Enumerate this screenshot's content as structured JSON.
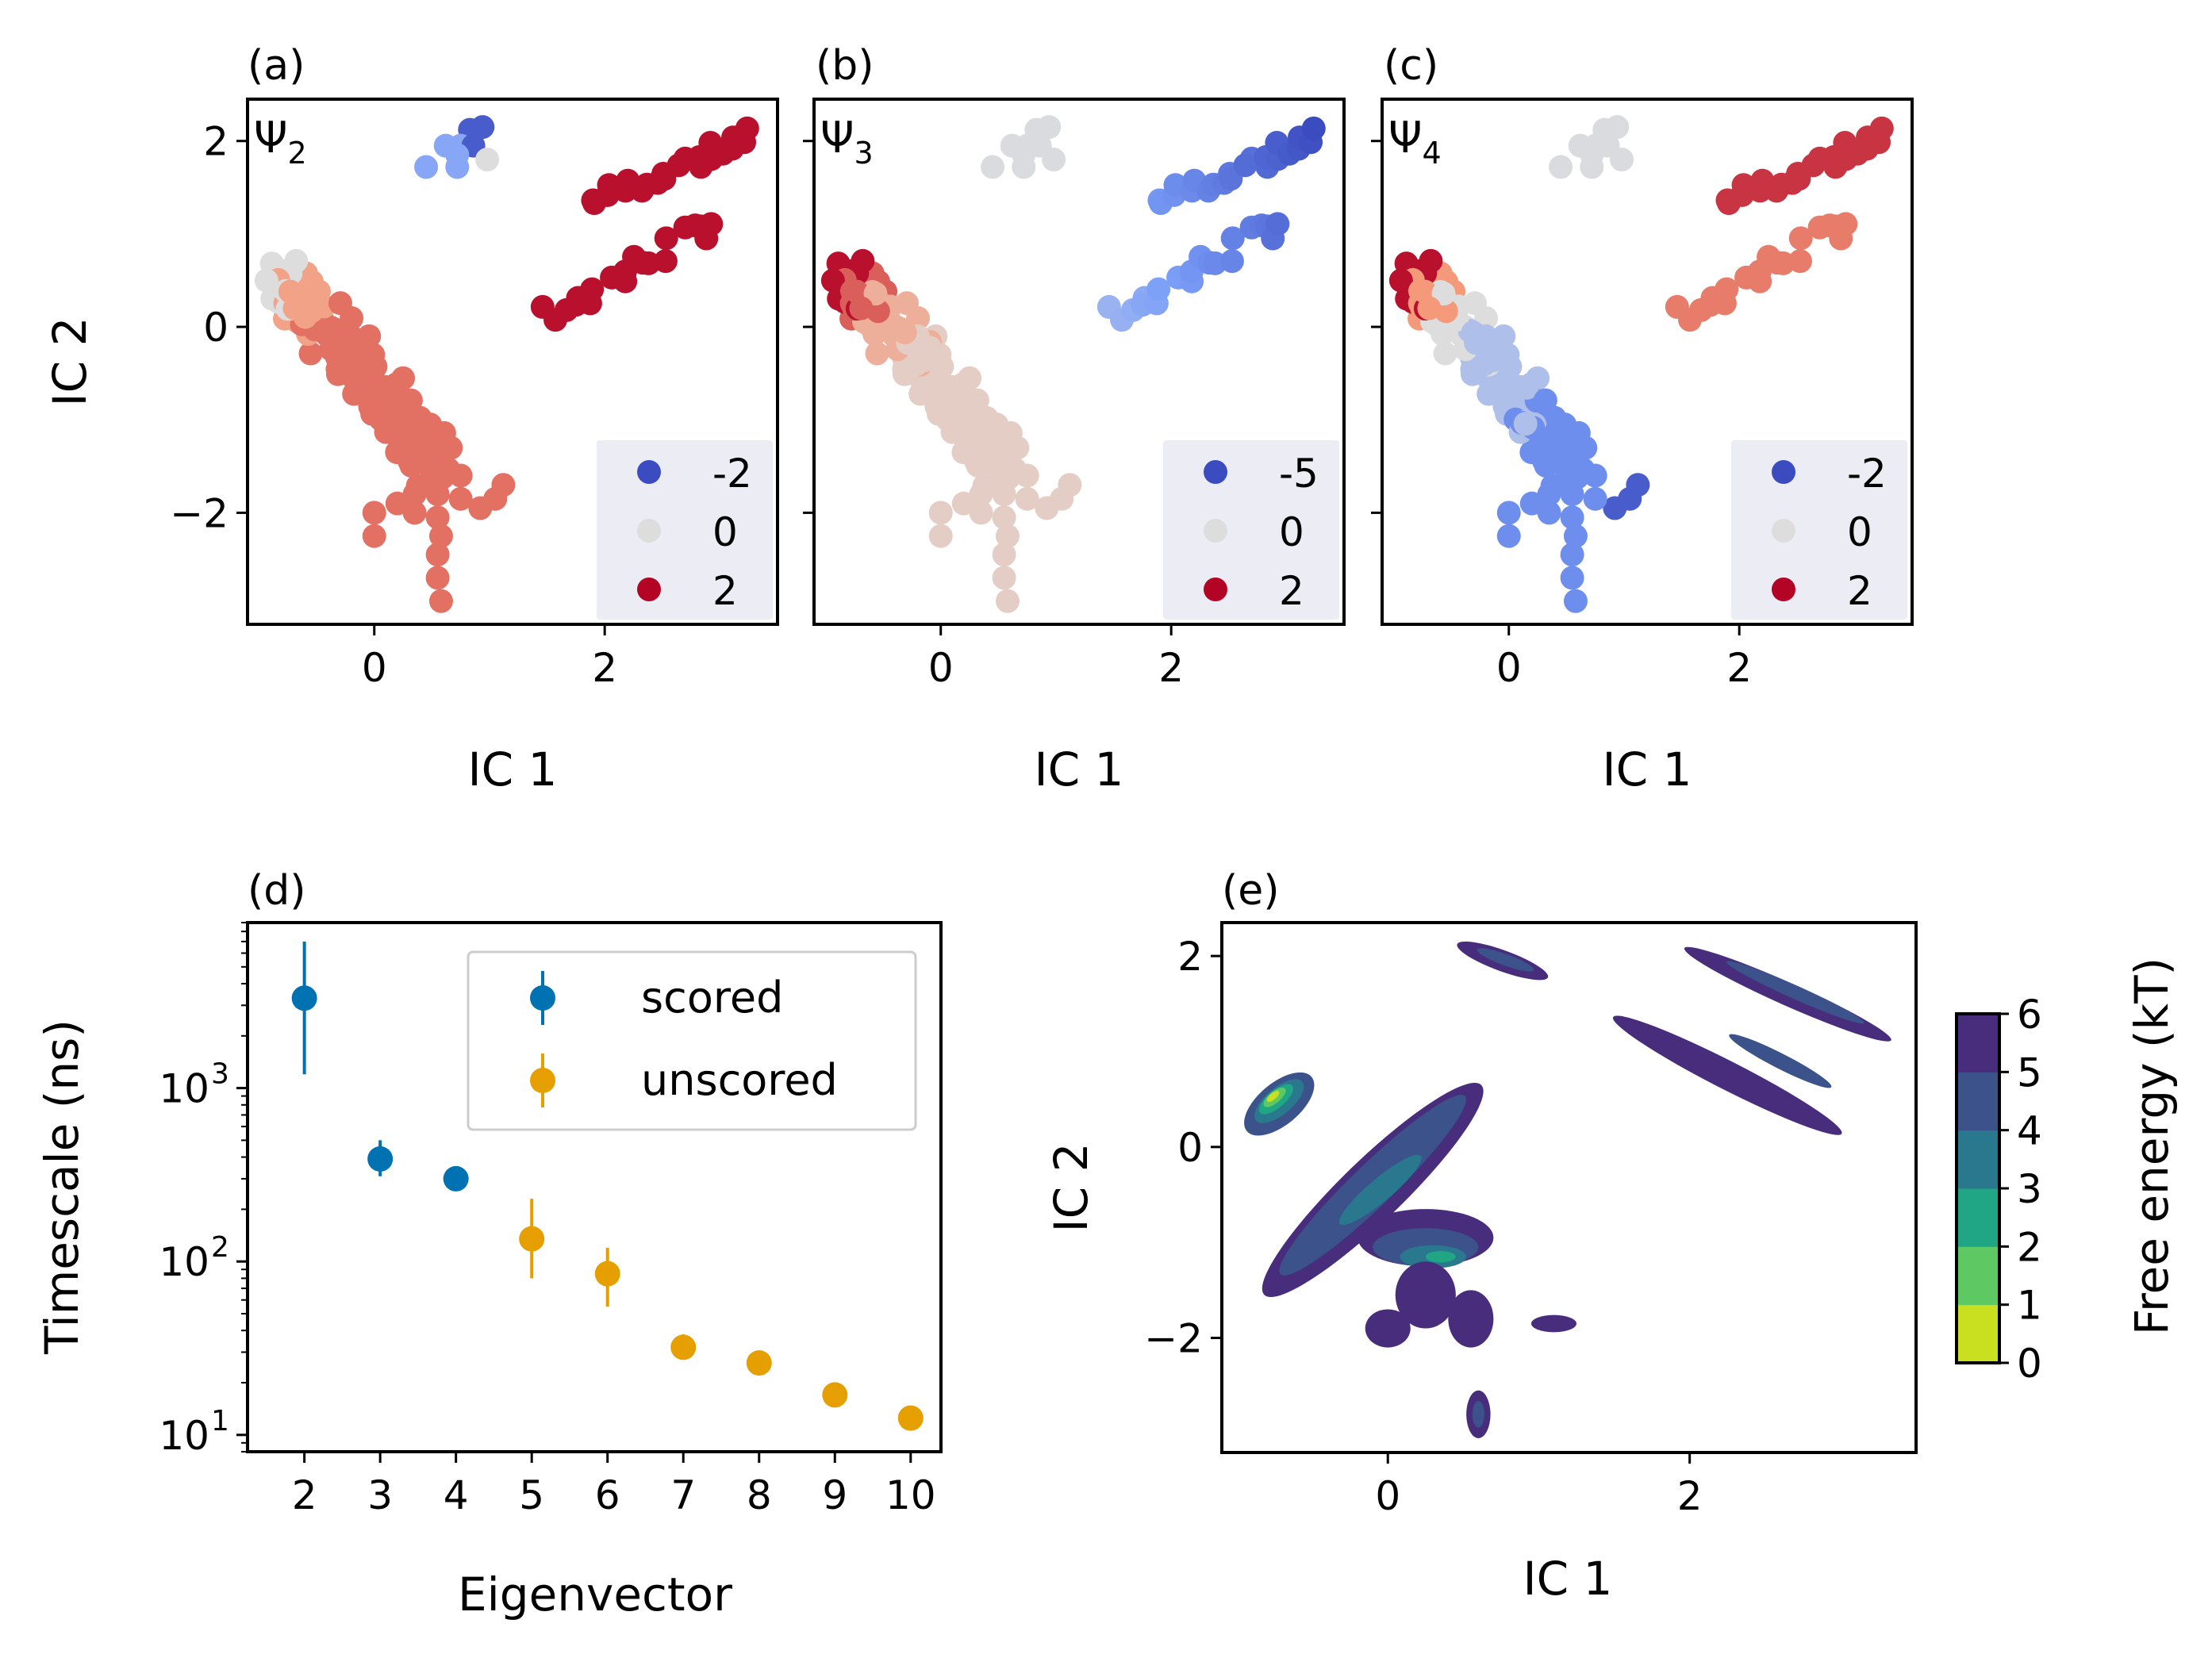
{
  "chart_data": [
    {
      "type": "scatter",
      "panel_label": "(a)",
      "inset_label": "Ψ",
      "inset_subscript": "2",
      "xlabel": "IC 1",
      "ylabel": "IC 2",
      "xlim": [
        -1.1,
        3.5
      ],
      "ylim": [
        -3.2,
        2.45
      ],
      "xticks": [
        0,
        2
      ],
      "yticks": [
        -2,
        0,
        2
      ],
      "xticklabels": [
        "0",
        "2"
      ],
      "yticklabels": [
        "−2",
        "0",
        "2"
      ],
      "colormap": "coolwarm",
      "legend": [
        {
          "label": "-2",
          "color": "#3b4cc0"
        },
        {
          "label": "0",
          "color": "#dddddd"
        },
        {
          "label": "2",
          "color": "#b40426"
        }
      ],
      "legend_position": "lower right"
    },
    {
      "type": "scatter",
      "panel_label": "(b)",
      "inset_label": "Ψ",
      "inset_subscript": "3",
      "xlabel": "IC 1",
      "xlim": [
        -1.1,
        3.5
      ],
      "ylim": [
        -3.2,
        2.45
      ],
      "xticks": [
        0,
        2
      ],
      "xticklabels": [
        "0",
        "2"
      ],
      "colormap": "coolwarm",
      "legend": [
        {
          "label": "-5",
          "color": "#3b4cc0"
        },
        {
          "label": "0",
          "color": "#dddddd"
        },
        {
          "label": "2",
          "color": "#b40426"
        }
      ],
      "legend_position": "lower right"
    },
    {
      "type": "scatter",
      "panel_label": "(c)",
      "inset_label": "Ψ",
      "inset_subscript": "4",
      "xlabel": "IC 1",
      "xlim": [
        -1.1,
        3.5
      ],
      "ylim": [
        -3.2,
        2.45
      ],
      "xticks": [
        0,
        2
      ],
      "xticklabels": [
        "0",
        "2"
      ],
      "colormap": "coolwarm",
      "legend": [
        {
          "label": "-2",
          "color": "#3b4cc0"
        },
        {
          "label": "0",
          "color": "#dddddd"
        },
        {
          "label": "2",
          "color": "#b40426"
        }
      ],
      "legend_position": "lower right"
    },
    {
      "type": "scatter",
      "panel_label": "(d)",
      "xlabel": "Eigenvector",
      "ylabel": "Timescale (ns)",
      "yscale": "log",
      "xlim": [
        1.25,
        10.4
      ],
      "ylim": [
        8,
        9000
      ],
      "xticks": [
        2,
        3,
        4,
        5,
        6,
        7,
        8,
        9,
        10
      ],
      "xticklabels": [
        "2",
        "3",
        "4",
        "5",
        "6",
        "7",
        "8",
        "9",
        "10"
      ],
      "yticks": [
        10,
        100,
        1000
      ],
      "yticklabels": [
        "10",
        "10",
        "10"
      ],
      "ytick_exponents": [
        "1",
        "2",
        "3"
      ],
      "legend_position": "upper right",
      "series": [
        {
          "name": "scored",
          "color": "#0072b2",
          "x": [
            2,
            3,
            4
          ],
          "y": [
            3300,
            390,
            300
          ],
          "err_low": [
            1200,
            310,
            270
          ],
          "err_high": [
            7000,
            500,
            340
          ]
        },
        {
          "name": "unscored",
          "color": "#e69f00",
          "x": [
            5,
            6,
            7,
            8,
            9,
            10
          ],
          "y": [
            135,
            85,
            32,
            26,
            17,
            12.5
          ],
          "err_low": [
            80,
            55,
            29,
            24,
            15.5,
            11
          ],
          "err_high": [
            230,
            120,
            38,
            29,
            19,
            14
          ]
        }
      ]
    },
    {
      "type": "heatmap",
      "panel_label": "(e)",
      "xlabel": "IC 1",
      "ylabel": "IC 2",
      "xlim": [
        -1.1,
        3.5
      ],
      "ylim": [
        -3.2,
        2.35
      ],
      "xticks": [
        0,
        2
      ],
      "xticklabels": [
        "0",
        "2"
      ],
      "yticks": [
        -2,
        0,
        2
      ],
      "yticklabels": [
        "−2",
        "0",
        "2"
      ],
      "colorbar_label": "Free energy (kT)",
      "colorbar_ticks": [
        "0",
        "1",
        "2",
        "3",
        "4",
        "5",
        "6"
      ],
      "levels": [
        0,
        1,
        2,
        3,
        4,
        5,
        6
      ],
      "level_colors": [
        "#c8e020",
        "#5ec962",
        "#21a685",
        "#2a788e",
        "#3b528b",
        "#472d7b"
      ]
    }
  ]
}
